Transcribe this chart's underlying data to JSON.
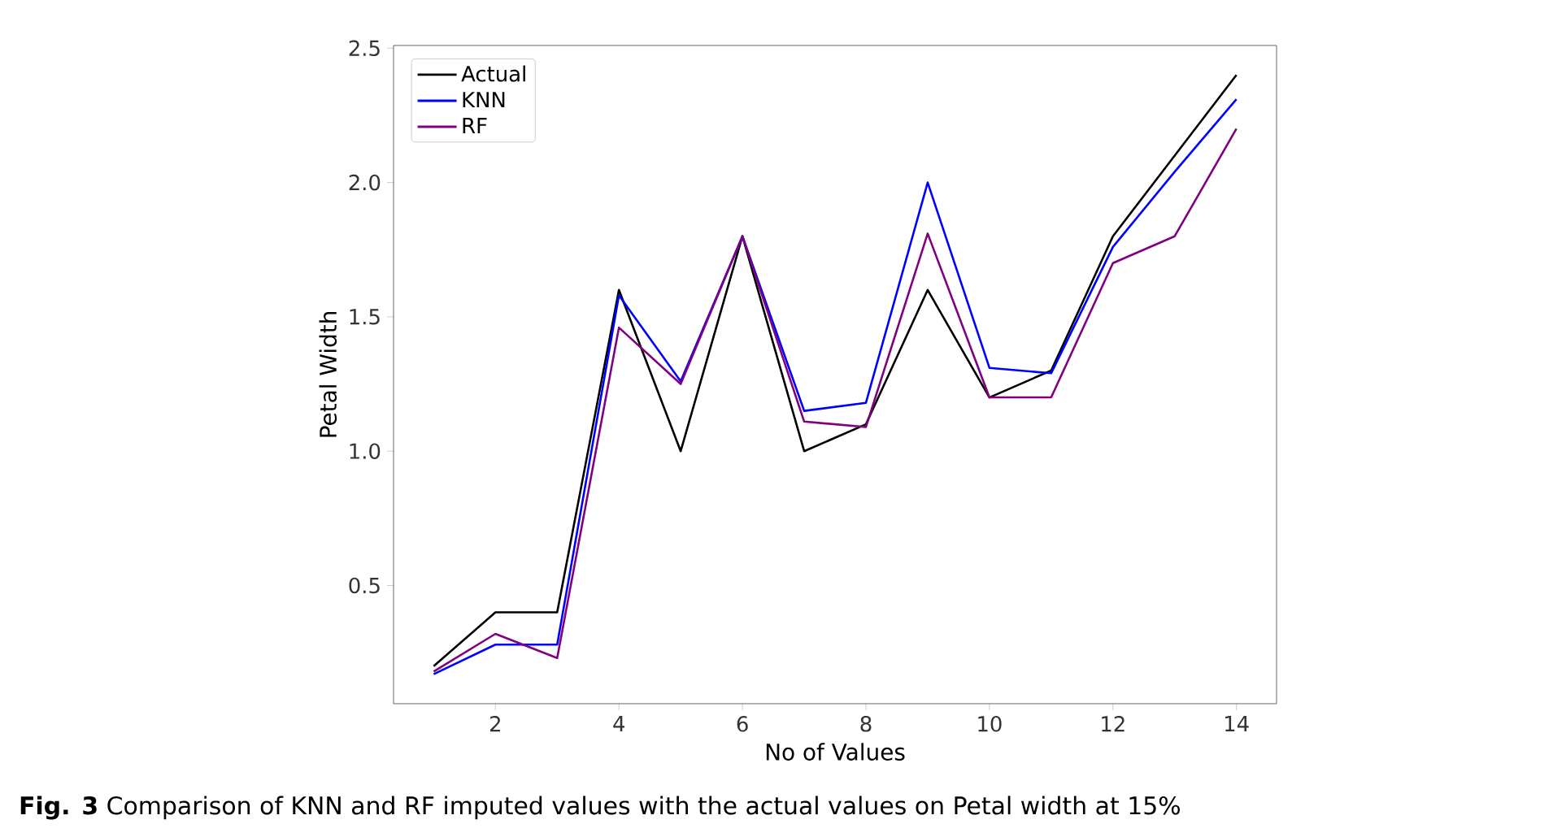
{
  "chart_data": {
    "type": "line",
    "xlabel": "No of Values",
    "ylabel": "Petal Width",
    "x": [
      1,
      2,
      3,
      4,
      5,
      6,
      7,
      8,
      9,
      10,
      11,
      12,
      13,
      14
    ],
    "series": [
      {
        "name": "Actual",
        "color": "#000000",
        "values": [
          0.2,
          0.4,
          0.4,
          1.6,
          1.0,
          1.8,
          1.0,
          1.1,
          1.6,
          1.2,
          1.3,
          1.8,
          2.1,
          2.4
        ]
      },
      {
        "name": "KNN",
        "color": "#0000ff",
        "values": [
          0.17,
          0.28,
          0.28,
          1.58,
          1.26,
          1.8,
          1.15,
          1.18,
          2.0,
          1.31,
          1.29,
          1.76,
          2.04,
          2.31
        ]
      },
      {
        "name": "RF",
        "color": "#800080",
        "values": [
          0.18,
          0.32,
          0.23,
          1.46,
          1.25,
          1.8,
          1.11,
          1.09,
          1.81,
          1.2,
          1.2,
          1.7,
          1.8,
          2.2
        ]
      }
    ],
    "xlim": [
      0.35,
      14.65
    ],
    "ylim": [
      0.06,
      2.51
    ],
    "xticks": [
      2,
      4,
      6,
      8,
      10,
      12,
      14
    ],
    "yticks": [
      0.5,
      {
        "value": 1.0,
        "label": "1.0"
      },
      1.5,
      {
        "value": 2.0,
        "label": "2.0"
      },
      2.5
    ],
    "legend": "top left",
    "grid": false,
    "marker": "none",
    "line_style": "solid",
    "annotations": [
      "**Fig. 3**  Comparison of KNN and RF imputed values with the actual values on Petal width at 15%"
    ]
  }
}
